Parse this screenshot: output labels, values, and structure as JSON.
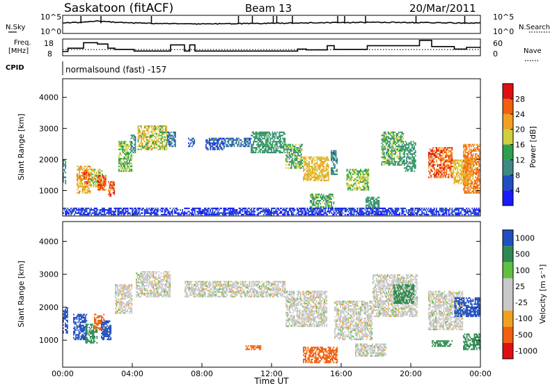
{
  "header": {
    "station": "Saskatoon (fitACF)",
    "beam": "Beam 13",
    "date": "20/Mar/2011"
  },
  "side_labels": {
    "nsky": "N.Sky",
    "nsearch": "N.Search",
    "freq_line1": "Freq.",
    "freq_line2": "[MHz]",
    "nave": "Nave",
    "cpid": "CPID"
  },
  "cpid_text": "normalsound (fast) -157",
  "x_axis_title": "Time UT",
  "colors": {
    "power_scale": [
      "#1a1aff",
      "#2050c0",
      "#3c8a82",
      "#2e9f4e",
      "#cfcf40",
      "#f0a020",
      "#f06010",
      "#e01010"
    ],
    "velocity_scale": [
      "#e01010",
      "#f06010",
      "#f0a020",
      "#c8c8c8",
      "#c8c8c8",
      "#60c040",
      "#2e8a50",
      "#2050c0"
    ],
    "gray": "#c8c8c8"
  },
  "chart_data": [
    {
      "name": "noise",
      "type": "line",
      "left_axis_title": "N.Sky",
      "right_axis_title": "N.Search",
      "left_ticks": [
        "10^5",
        "10^0"
      ],
      "right_ticks": [
        "10^5",
        "10^0"
      ],
      "x": [
        0,
        1,
        1.5,
        2,
        3,
        4,
        6,
        8,
        10,
        12,
        14,
        16,
        18,
        20,
        22,
        24
      ],
      "sky": [
        3,
        3,
        3.2,
        3.4,
        3.1,
        2.9,
        2.7,
        2.6,
        2.7,
        2.8,
        2.9,
        3,
        3.1,
        3,
        2.9,
        2.9
      ],
      "search_spikes": [
        1.05,
        2.2,
        5.1,
        10.1,
        10.9,
        12.1,
        12.3,
        13.2,
        15.8,
        16.2,
        17.4,
        20.3,
        23.1
      ]
    },
    {
      "name": "frequency",
      "type": "line",
      "left_axis_title": "Freq. [MHz]",
      "right_axis_title": "Nave",
      "left_ticks": [
        18,
        8
      ],
      "right_ticks": [
        60,
        0
      ],
      "ylim": [
        8,
        18
      ],
      "nave_ylim": [
        0,
        60
      ],
      "freq_steps": [
        [
          0,
          0.3,
          10.5
        ],
        [
          0.3,
          1.2,
          12.5
        ],
        [
          1.2,
          2.0,
          15.8
        ],
        [
          2.0,
          2.6,
          15
        ],
        [
          2.6,
          3.0,
          12.5
        ],
        [
          3.0,
          4.1,
          11.8
        ],
        [
          4.1,
          6.2,
          10.8
        ],
        [
          6.2,
          7.0,
          14.5
        ],
        [
          7.0,
          7.3,
          10.8
        ],
        [
          7.3,
          7.6,
          14.5
        ],
        [
          7.6,
          13.5,
          10.8
        ],
        [
          13.5,
          14.0,
          12
        ],
        [
          14.0,
          15.2,
          11.5
        ],
        [
          15.2,
          15.6,
          14
        ],
        [
          15.6,
          17.5,
          11.8
        ],
        [
          17.5,
          20.5,
          14
        ],
        [
          20.5,
          21.2,
          17.2
        ],
        [
          21.2,
          22.5,
          13.5
        ],
        [
          22.5,
          23.2,
          12
        ],
        [
          23.2,
          24,
          13
        ]
      ],
      "nave_level": 22
    },
    {
      "name": "power",
      "type": "heatmap",
      "ylabel": "Slant Range [km]",
      "yticks": [
        1000,
        2000,
        3000,
        4000
      ],
      "ylim": [
        180,
        4600
      ],
      "xlim": [
        0,
        24
      ],
      "colorbar_label": "Power [dB]",
      "colorbar_ticks": [
        4,
        8,
        12,
        16,
        20,
        24,
        28
      ],
      "colorbar_range": [
        0,
        32
      ],
      "regions": [
        {
          "t0": 0.0,
          "t1": 0.2,
          "r0": 1200,
          "r1": 2000,
          "value": 10
        },
        {
          "t0": 0.8,
          "t1": 1.6,
          "r0": 900,
          "r1": 1800,
          "value": 22
        },
        {
          "t0": 1.2,
          "t1": 1.6,
          "r0": 1200,
          "r1": 1600,
          "value": 27
        },
        {
          "t0": 1.6,
          "t1": 2.3,
          "r0": 1100,
          "r1": 1700,
          "value": 18
        },
        {
          "t0": 2.0,
          "t1": 2.5,
          "r0": 1000,
          "r1": 1500,
          "value": 26
        },
        {
          "t0": 2.6,
          "t1": 3.0,
          "r0": 800,
          "r1": 1300,
          "value": 27
        },
        {
          "t0": 3.2,
          "t1": 4.0,
          "r0": 1600,
          "r1": 2600,
          "value": 16
        },
        {
          "t0": 3.9,
          "t1": 4.2,
          "r0": 2200,
          "r1": 2800,
          "value": 10
        },
        {
          "t0": 4.3,
          "t1": 6.0,
          "r0": 2300,
          "r1": 3100,
          "value": 18
        },
        {
          "t0": 6.0,
          "t1": 6.5,
          "r0": 2400,
          "r1": 2900,
          "value": 8
        },
        {
          "t0": 7.2,
          "t1": 7.6,
          "r0": 2400,
          "r1": 2700,
          "value": 6
        },
        {
          "t0": 8.2,
          "t1": 9.3,
          "r0": 2300,
          "r1": 2700,
          "value": 6
        },
        {
          "t0": 9.3,
          "t1": 10.8,
          "r0": 2400,
          "r1": 2700,
          "value": 8
        },
        {
          "t0": 10.8,
          "t1": 12.8,
          "r0": 2200,
          "r1": 2900,
          "value": 12
        },
        {
          "t0": 12.8,
          "t1": 13.8,
          "r0": 1700,
          "r1": 2500,
          "value": 14
        },
        {
          "t0": 13.8,
          "t1": 15.3,
          "r0": 1300,
          "r1": 2100,
          "value": 20
        },
        {
          "t0": 14.2,
          "t1": 15.6,
          "r0": 400,
          "r1": 900,
          "value": 14
        },
        {
          "t0": 15.4,
          "t1": 15.8,
          "r0": 1500,
          "r1": 2300,
          "value": 10
        },
        {
          "t0": 16.3,
          "t1": 17.6,
          "r0": 1000,
          "r1": 1700,
          "value": 16
        },
        {
          "t0": 17.4,
          "t1": 18.2,
          "r0": 400,
          "r1": 800,
          "value": 12
        },
        {
          "t0": 18.3,
          "t1": 19.6,
          "r0": 1800,
          "r1": 2900,
          "value": 14
        },
        {
          "t0": 19.6,
          "t1": 20.3,
          "r0": 1600,
          "r1": 2600,
          "value": 12
        },
        {
          "t0": 21.0,
          "t1": 22.4,
          "r0": 1400,
          "r1": 2400,
          "value": 26
        },
        {
          "t0": 22.4,
          "t1": 23.6,
          "r0": 1200,
          "r1": 2000,
          "value": 20
        },
        {
          "t0": 23.0,
          "t1": 24.0,
          "r0": 900,
          "r1": 2500,
          "value": 24
        },
        {
          "t0": 0.0,
          "t1": 24.0,
          "r0": 200,
          "r1": 450,
          "value": 4
        }
      ]
    },
    {
      "name": "velocity",
      "type": "heatmap",
      "ylabel": "Slant Range [km]",
      "yticks": [
        1000,
        2000,
        3000,
        4000
      ],
      "ylim": [
        180,
        4600
      ],
      "xlim": [
        0,
        24
      ],
      "colorbar_label": "Velocity [m s⁻¹]",
      "colorbar_ticks": [
        1000,
        500,
        100,
        25,
        -25,
        -100,
        -500,
        -1000
      ],
      "regions": [
        {
          "t0": 0.0,
          "t1": 0.3,
          "r0": 1200,
          "r1": 2000,
          "value": 600
        },
        {
          "t0": 0.6,
          "t1": 1.4,
          "r0": 1000,
          "r1": 1800,
          "value": 700
        },
        {
          "t0": 1.3,
          "t1": 2.0,
          "r0": 900,
          "r1": 1500,
          "value": 300
        },
        {
          "t0": 1.8,
          "t1": 2.4,
          "r0": 1300,
          "r1": 1800,
          "value": -300
        },
        {
          "t0": 2.2,
          "t1": 2.8,
          "r0": 1000,
          "r1": 1600,
          "value": 800
        },
        {
          "t0": 3.0,
          "t1": 4.0,
          "r0": 1800,
          "r1": 2700,
          "value": 0
        },
        {
          "t0": 4.2,
          "t1": 6.2,
          "r0": 2300,
          "r1": 3100,
          "value": 0
        },
        {
          "t0": 7.0,
          "t1": 12.8,
          "r0": 2300,
          "r1": 2800,
          "value": 0
        },
        {
          "t0": 12.8,
          "t1": 15.2,
          "r0": 1400,
          "r1": 2500,
          "value": 0
        },
        {
          "t0": 10.5,
          "t1": 11.4,
          "r0": 700,
          "r1": 850,
          "value": -300
        },
        {
          "t0": 13.8,
          "t1": 15.8,
          "r0": 300,
          "r1": 800,
          "value": -400
        },
        {
          "t0": 15.6,
          "t1": 17.8,
          "r0": 1000,
          "r1": 2200,
          "value": 0
        },
        {
          "t0": 16.8,
          "t1": 18.6,
          "r0": 500,
          "r1": 900,
          "value": 0
        },
        {
          "t0": 17.8,
          "t1": 20.4,
          "r0": 1700,
          "r1": 3000,
          "value": 0
        },
        {
          "t0": 19.0,
          "t1": 20.2,
          "r0": 2100,
          "r1": 2700,
          "value": 200
        },
        {
          "t0": 21.0,
          "t1": 23.0,
          "r0": 1300,
          "r1": 2500,
          "value": 0
        },
        {
          "t0": 22.5,
          "t1": 24.0,
          "r0": 1700,
          "r1": 2300,
          "value": 800
        },
        {
          "t0": 21.2,
          "t1": 22.4,
          "r0": 800,
          "r1": 1000,
          "value": 150
        },
        {
          "t0": 23.0,
          "t1": 24.0,
          "r0": 700,
          "r1": 1200,
          "value": 300
        }
      ]
    }
  ],
  "x_axis": {
    "ticks": [
      "00:00",
      "04:00",
      "08:00",
      "12:00",
      "16:00",
      "20:00",
      "00:00"
    ],
    "values": [
      0,
      4,
      8,
      12,
      16,
      20,
      24
    ]
  }
}
